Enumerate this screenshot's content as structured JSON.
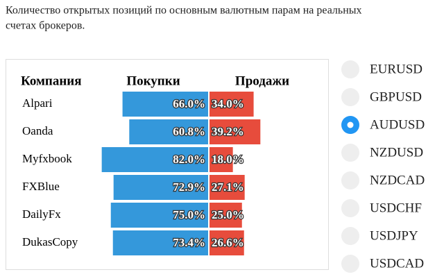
{
  "header": {
    "title_lines": [
      "Количество открытых позиций по основным валютным парам на реальных",
      "счетах брокеров."
    ]
  },
  "chart_data": {
    "type": "diverging_bar",
    "category_label": "Компания",
    "categories": [
      "Alpari",
      "Oanda",
      "Myfxbook",
      "FXBlue",
      "DailyFx",
      "DukasCopy"
    ],
    "series": [
      {
        "name": "Покупки",
        "color": "#3498db",
        "values": [
          66.0,
          60.8,
          82.0,
          72.9,
          75.0,
          73.4
        ],
        "value_labels": [
          "66.0%",
          "60.8%",
          "82.0%",
          "72.9%",
          "75.0%",
          "73.4%"
        ]
      },
      {
        "name": "Продажи",
        "color": "#e74c3c",
        "values": [
          34.0,
          39.2,
          18.0,
          27.1,
          25.0,
          26.6
        ],
        "value_labels": [
          "34.0%",
          "39.2%",
          "18.0%",
          "27.1%",
          "25.0%",
          "26.6%"
        ]
      }
    ]
  },
  "currency_pairs": {
    "options": [
      "EURUSD",
      "GBPUSD",
      "AUDUSD",
      "NZDUSD",
      "NZDCAD",
      "USDCHF",
      "USDJPY",
      "USDCAD"
    ],
    "selected": "AUDUSD"
  }
}
